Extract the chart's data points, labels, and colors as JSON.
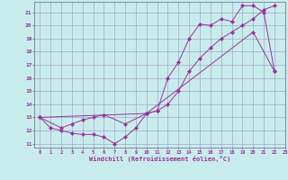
{
  "xlabel": "Windchill (Refroidissement éolien,°C)",
  "background_color": "#c8ecec",
  "line_color": "#993399",
  "xlim": [
    -0.5,
    23
  ],
  "ylim": [
    10.7,
    21.8
  ],
  "xticks": [
    0,
    1,
    2,
    3,
    4,
    5,
    6,
    7,
    8,
    9,
    10,
    11,
    12,
    13,
    14,
    15,
    16,
    17,
    18,
    19,
    20,
    21,
    22,
    23
  ],
  "yticks": [
    11,
    12,
    13,
    14,
    15,
    16,
    17,
    18,
    19,
    20,
    21
  ],
  "series1_x": [
    0,
    1,
    2,
    3,
    4,
    5,
    6,
    7,
    8,
    9,
    10,
    11,
    12,
    13,
    14,
    15,
    16,
    17,
    18,
    19,
    20,
    21,
    22
  ],
  "series1_y": [
    13,
    12.2,
    12.0,
    11.8,
    11.7,
    11.7,
    11.5,
    11.0,
    11.5,
    12.2,
    13.3,
    13.5,
    16.0,
    17.2,
    19.0,
    20.1,
    20.0,
    20.5,
    20.3,
    21.5,
    21.5,
    21.0,
    16.5
  ],
  "series2_x": [
    0,
    2,
    3,
    4,
    5,
    6,
    8,
    10,
    11,
    12,
    13,
    14,
    15,
    16,
    17,
    18,
    19,
    20,
    21,
    22
  ],
  "series2_y": [
    13,
    12.2,
    12.5,
    12.8,
    13.0,
    13.2,
    12.5,
    13.3,
    13.5,
    14.0,
    15.0,
    16.5,
    17.5,
    18.3,
    19.0,
    19.5,
    20.0,
    20.5,
    21.2,
    21.5
  ],
  "series3_x": [
    0,
    10,
    20,
    22
  ],
  "series3_y": [
    13,
    13.3,
    19.5,
    16.5
  ],
  "grid_color": "#9999bb",
  "marker": "D",
  "markersize": 2.2,
  "linewidth": 0.7
}
